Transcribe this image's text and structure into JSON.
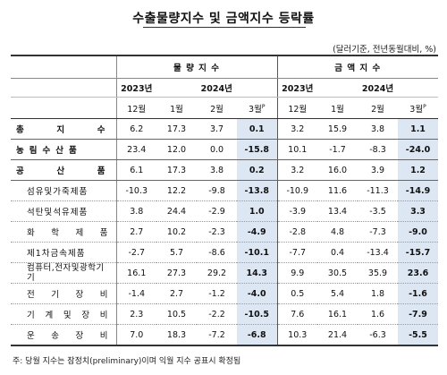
{
  "title": "수출물량지수 및 금액지수 등락률",
  "unit_note": "(달러기준, 전년동월대비, %)",
  "sections": {
    "volume": "물 량 지 수",
    "value": "금 액 지 수"
  },
  "years": {
    "y2023": "2023년",
    "y2024": "2024년"
  },
  "months": {
    "dec": "12월",
    "jan": "1월",
    "feb": "2월",
    "mar": "3월",
    "mar_sup": "P"
  },
  "rows": [
    {
      "label": "총 지 수",
      "v": [
        "6.2",
        "17.3",
        "3.7",
        "0.1",
        "3.2",
        "15.9",
        "3.8",
        "1.1"
      ]
    },
    {
      "label": "농림수산품",
      "v": [
        "23.4",
        "12.0",
        "0.0",
        "-15.8",
        "10.1",
        "-1.7",
        "-8.3",
        "-24.0"
      ]
    },
    {
      "label": "공 산 품",
      "v": [
        "6.1",
        "17.3",
        "3.8",
        "0.2",
        "3.2",
        "16.0",
        "3.9",
        "1.2"
      ]
    },
    {
      "label": "섬유및가죽제품",
      "v": [
        "-10.3",
        "12.2",
        "-9.8",
        "-13.8",
        "-10.9",
        "11.6",
        "-11.3",
        "-14.9"
      ]
    },
    {
      "label": "석탄및석유제품",
      "v": [
        "3.8",
        "24.4",
        "-2.9",
        "1.0",
        "-3.9",
        "13.4",
        "-3.5",
        "3.3"
      ]
    },
    {
      "label": "화 학 제 품",
      "v": [
        "2.7",
        "10.2",
        "-2.3",
        "-4.9",
        "-2.8",
        "4.8",
        "-7.3",
        "-9.0"
      ]
    },
    {
      "label": "제1차금속제품",
      "v": [
        "-2.7",
        "5.7",
        "-8.6",
        "-10.1",
        "-7.7",
        "0.4",
        "-13.4",
        "-15.7"
      ]
    },
    {
      "label": "컴퓨터,전자및광학기기",
      "v": [
        "16.1",
        "27.3",
        "29.2",
        "14.3",
        "9.9",
        "30.5",
        "35.9",
        "23.6"
      ]
    },
    {
      "label": "전 기 장 비",
      "v": [
        "-1.4",
        "2.7",
        "-1.2",
        "-4.0",
        "0.5",
        "5.4",
        "1.8",
        "-1.6"
      ]
    },
    {
      "label": "기 계 및 장 비",
      "v": [
        "2.3",
        "10.5",
        "-2.2",
        "-10.5",
        "7.6",
        "16.1",
        "1.6",
        "-7.9"
      ]
    },
    {
      "label": "운 송 장 비",
      "v": [
        "7.0",
        "18.3",
        "-7.2",
        "-6.8",
        "10.3",
        "21.4",
        "-6.3",
        "-5.5"
      ]
    }
  ],
  "footnote": "주: 당월 지수는 잠정치(preliminary)이며 익월 지수 공표시 확정됨"
}
